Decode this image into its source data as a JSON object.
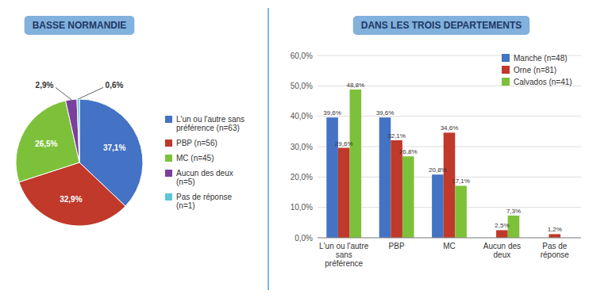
{
  "chart_data": [
    {
      "type": "pie",
      "title": "BASSE NORMANDIE",
      "categories": [
        "L'un ou l'autre sans\npréférence (n=63)",
        "PBP (n=56)",
        "MC (n=45)",
        "Aucun des deux\n(n=5)",
        "Pas de réponse\n(n=1)"
      ],
      "values": [
        37.1,
        32.9,
        26.5,
        2.9,
        0.6
      ],
      "value_labels": [
        "37,1%",
        "32,9%",
        "26,5%",
        "2,9%",
        "0,6%"
      ],
      "colors": [
        "#4472C4",
        "#C0392B",
        "#7DC13A",
        "#7B3F9E",
        "#5BC8D6"
      ],
      "data_labels": true,
      "legend": "right"
    },
    {
      "type": "bar",
      "title": "DANS LES TROIS DEPARTEMENTS",
      "categories": [
        "L'un ou l'autre\nsans\npréférence",
        "PBP",
        "MC",
        "Aucun des\ndeux",
        "Pas de\nréponse"
      ],
      "series": [
        {
          "name": "Manche (n=48)",
          "color": "#4472C4",
          "values": [
            39.6,
            39.6,
            20.8,
            0.0,
            0.0
          ],
          "value_labels": [
            "39,6%",
            "39,6%",
            "20,8%",
            null,
            null
          ]
        },
        {
          "name": "Orne (n=81)",
          "color": "#C0392B",
          "values": [
            29.6,
            32.1,
            34.6,
            2.5,
            1.2
          ],
          "value_labels": [
            "29,6%",
            "32,1%",
            "34,6%",
            "2,5%",
            "1,2%"
          ]
        },
        {
          "name": "Calvados (n=41)",
          "color": "#7DC13A",
          "values": [
            48.8,
            26.8,
            17.1,
            7.3,
            0.0
          ],
          "value_labels": [
            "48,8%",
            "26,8%",
            "17,1%",
            "7,3%",
            null
          ]
        }
      ],
      "ylim": [
        0,
        60
      ],
      "yticks": [
        {
          "value": 0,
          "label": "0,0%"
        },
        {
          "value": 10,
          "label": "10,0%"
        },
        {
          "value": 20,
          "label": "20,0%"
        },
        {
          "value": 30,
          "label": "30,0%"
        },
        {
          "value": 40,
          "label": "40,0%"
        },
        {
          "value": 50,
          "label": "50,0%"
        },
        {
          "value": 60,
          "label": "60,0%"
        }
      ],
      "grid": true,
      "legend": "upper right",
      "data_labels": true
    }
  ]
}
